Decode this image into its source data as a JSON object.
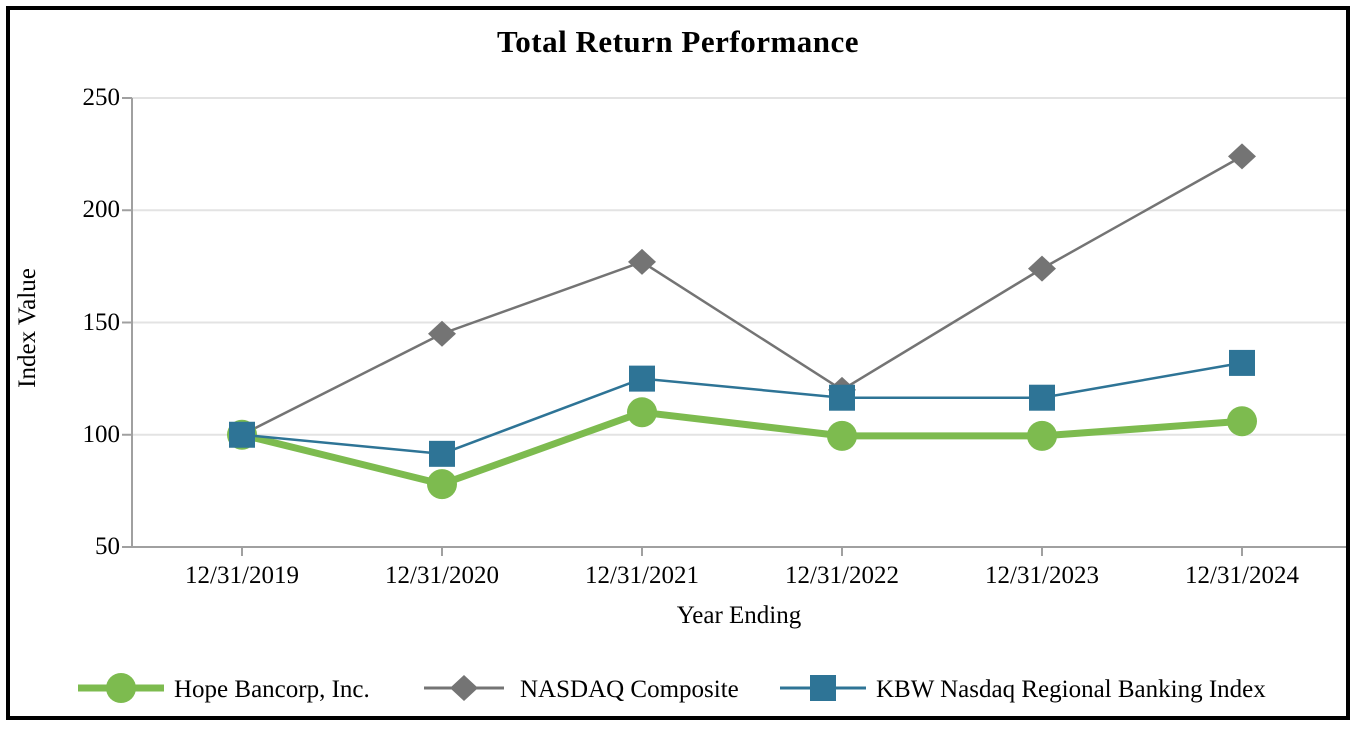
{
  "chart": {
    "title": "Total Return Performance",
    "ylabel": "Index Value",
    "xlabel": "Year Ending"
  },
  "chart_data": {
    "type": "line",
    "title": "Total Return Performance",
    "xlabel": "Year Ending",
    "ylabel": "Index Value",
    "categories": [
      "12/31/2019",
      "12/31/2020",
      "12/31/2021",
      "12/31/2022",
      "12/31/2023",
      "12/31/2024"
    ],
    "y_ticks": [
      50,
      100,
      150,
      200,
      250
    ],
    "ylim": [
      50,
      250
    ],
    "grid": "horizontal-light",
    "legend_position": "bottom",
    "series": [
      {
        "name": "Hope Bancorp, Inc.",
        "marker": "circle",
        "color": "#7DBB4F",
        "line_width": 7,
        "values": [
          100,
          78,
          110,
          99.5,
          99.5,
          106
        ]
      },
      {
        "name": "NASDAQ Composite",
        "marker": "diamond",
        "color": "#747474",
        "line_width": 2.5,
        "values": [
          100,
          145,
          177,
          120,
          174,
          224
        ]
      },
      {
        "name": "KBW Nasdaq Regional Banking Index",
        "marker": "square",
        "color": "#2E7496",
        "line_width": 2.5,
        "values": [
          100,
          91.5,
          125,
          116.5,
          116.5,
          132
        ]
      }
    ],
    "draw_order": [
      1,
      0,
      2
    ],
    "axis_color": "#A0A0A0",
    "gridline_color": "#E3E3E3"
  }
}
